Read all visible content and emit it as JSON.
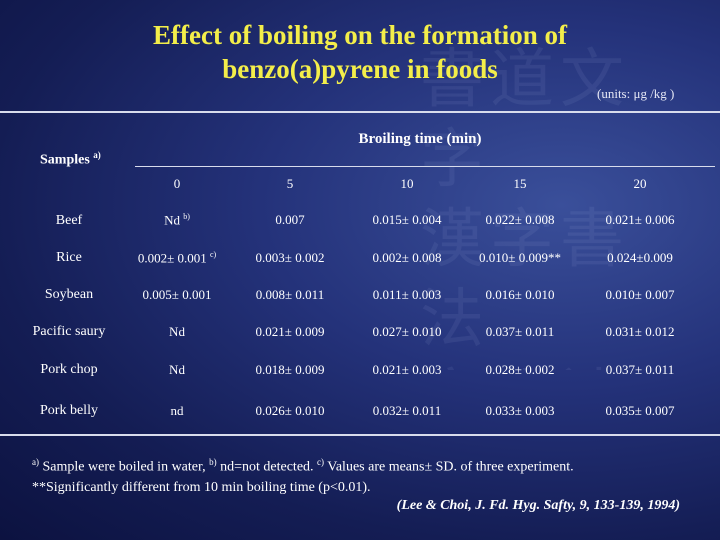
{
  "title": {
    "line1": "Effect of boiling on the formation of",
    "line2": "benzo(a)pyrene in foods"
  },
  "units": "(units: μg /kg )",
  "table": {
    "broiling_header": "Broiling time (min)",
    "samples_header": "Samples",
    "samples_sup": "a)",
    "times": [
      "0",
      "5",
      "10",
      "15",
      "20"
    ],
    "rows": [
      {
        "label": "Beef",
        "values": [
          "Nd",
          "0.007",
          "0.015± 0.004",
          "0.022± 0.008",
          "0.021± 0.006"
        ],
        "first_sup": "b)"
      },
      {
        "label": "Rice",
        "values": [
          "0.002± 0.001",
          "0.003± 0.002",
          "0.002± 0.008",
          "0.010± 0.009**",
          "0.024±0.009"
        ],
        "first_sup": "c)"
      },
      {
        "label": "Soybean",
        "values": [
          "0.005± 0.001",
          "0.008± 0.011",
          "0.011± 0.003",
          "0.016± 0.010",
          "0.010± 0.007"
        ],
        "first_sup": ""
      },
      {
        "label": "Pacific saury",
        "values": [
          "Nd",
          "0.021± 0.009",
          "0.027± 0.010",
          "0.037± 0.011",
          "0.031± 0.012"
        ],
        "first_sup": ""
      },
      {
        "label": "Pork chop",
        "values": [
          "Nd",
          "0.018± 0.009",
          "0.021± 0.003",
          "0.028± 0.002",
          "0.037± 0.011"
        ],
        "first_sup": ""
      },
      {
        "label": "Pork belly",
        "values": [
          "nd",
          "0.026± 0.010",
          "0.032± 0.011",
          "0.033± 0.003",
          "0.035± 0.007"
        ],
        "first_sup": ""
      }
    ]
  },
  "footnote": {
    "a_mark": "a)",
    "a_text": " Sample were boiled in water, ",
    "b_mark": "b)",
    "b_text": " nd=not detected. ",
    "c_mark": "c)",
    "c_text": " Values are means± SD. of three experiment.",
    "line2": "**Significantly different from 10 min boiling time (p<0.01)."
  },
  "citation": "(Lee & Choi, J. Fd. Hyg. Safty, 9, 133-139, 1994)"
}
